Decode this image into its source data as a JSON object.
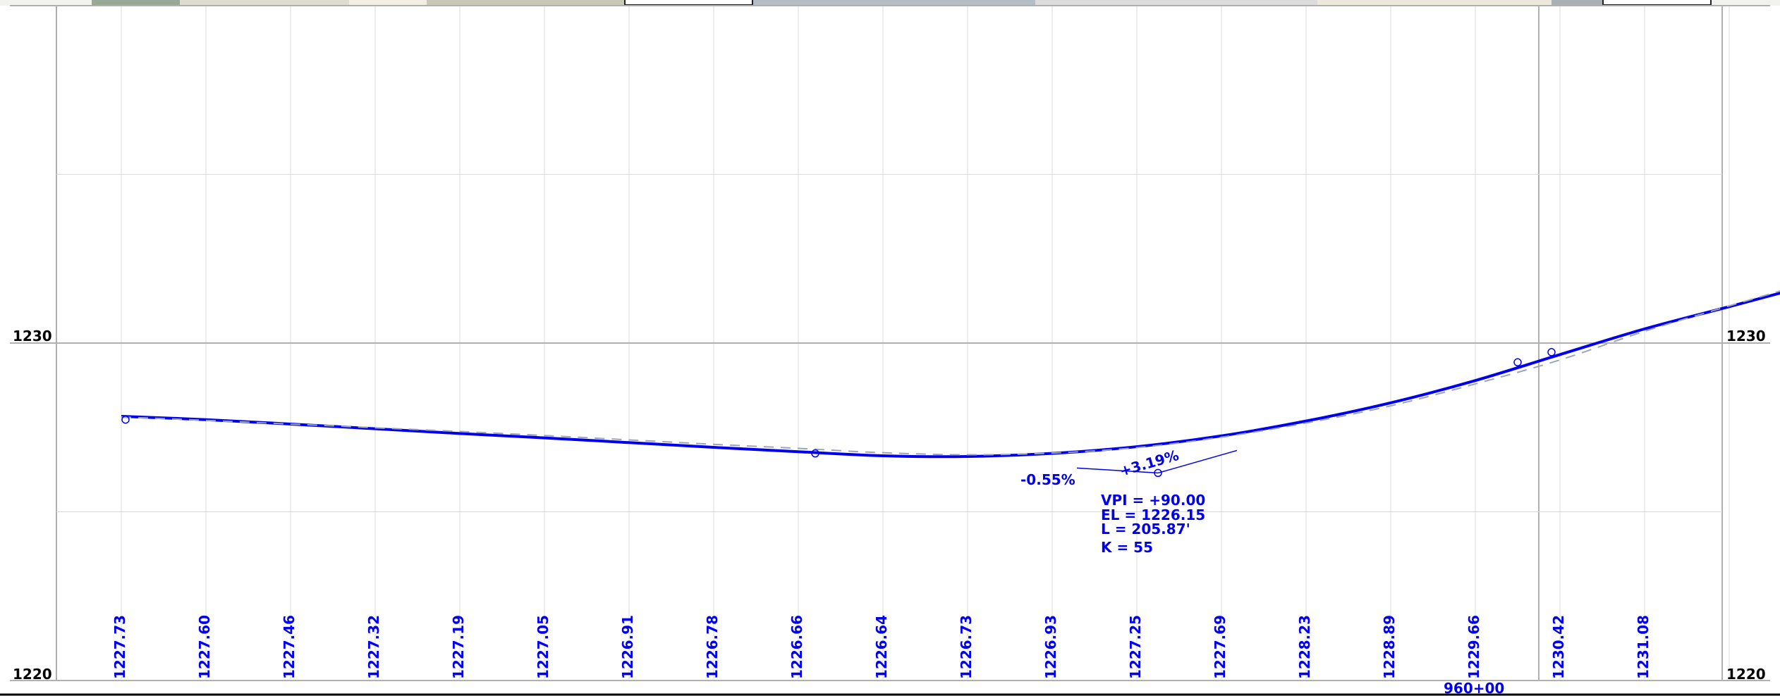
{
  "chart_data": {
    "type": "line",
    "title": "",
    "xlabel": "",
    "ylabel": "",
    "ylim": [
      1220,
      1240
    ],
    "elevation_labels": [
      "1230",
      "1220"
    ],
    "grid": true,
    "colors": {
      "profile": "#0000ee",
      "existing_ground": "#9aa5b8",
      "grid": "#d9d9d9",
      "major_grid": "#b0b0b0",
      "text": "#000000"
    },
    "station_label": "960+00",
    "station_elevations": {
      "labels": [
        "1227.73",
        "1227.60",
        "1227.46",
        "1227.32",
        "1227.19",
        "1227.05",
        "1226.91",
        "1226.78",
        "1226.66",
        "1226.64",
        "1226.73",
        "1226.93",
        "1227.25",
        "1227.69",
        "1228.23",
        "1228.89",
        "1229.66",
        "1230.42",
        "1231.08"
      ],
      "values": [
        1227.73,
        1227.6,
        1227.46,
        1227.32,
        1227.19,
        1227.05,
        1226.91,
        1226.78,
        1226.66,
        1226.64,
        1226.73,
        1226.93,
        1227.25,
        1227.69,
        1228.23,
        1228.89,
        1229.66,
        1230.42,
        1231.08
      ]
    },
    "series": [
      {
        "key": "proposed",
        "x": [
          0,
          1,
          2,
          3,
          4,
          5,
          6,
          7,
          8,
          9,
          10,
          11,
          12,
          13,
          14,
          15,
          16,
          17,
          18,
          19,
          19.75
        ],
        "y": [
          1227.83,
          1227.73,
          1227.6,
          1227.46,
          1227.32,
          1227.19,
          1227.05,
          1226.91,
          1226.78,
          1226.66,
          1226.64,
          1226.73,
          1226.93,
          1227.25,
          1227.69,
          1228.23,
          1228.89,
          1229.66,
          1230.42,
          1231.08,
          1231.58
        ]
      },
      {
        "key": "existing",
        "x": [
          0,
          1,
          2,
          3,
          4,
          5,
          6,
          7,
          8,
          9,
          10,
          11,
          12,
          13,
          14,
          15,
          16,
          17,
          18,
          19,
          19.75
        ],
        "y": [
          1227.81,
          1227.71,
          1227.6,
          1227.49,
          1227.38,
          1227.26,
          1227.13,
          1227.0,
          1226.88,
          1226.75,
          1226.69,
          1226.74,
          1226.9,
          1227.21,
          1227.63,
          1228.14,
          1228.79,
          1229.5,
          1230.35,
          1231.1,
          1231.65
        ]
      }
    ],
    "points": [
      {
        "x": 0.05,
        "y": 1227.73
      },
      {
        "x": 8.2,
        "y": 1226.73
      },
      {
        "x": 16.5,
        "y": 1229.43
      },
      {
        "x": 16.9,
        "y": 1229.73
      }
    ],
    "vpi": {
      "x": 12.25,
      "y": 1226.15,
      "grade_in": "-0.55%",
      "grade_out": "+3.19%",
      "lines": [
        "VPI = +90.00",
        "EL = 1226.15",
        "L = 205.87'",
        "K = 55"
      ]
    }
  },
  "thumbnails": {
    "colors": [
      "#f2f2ee",
      "#9aa896",
      "#dcdcd0",
      "#f2eee4",
      "#c8c8b8",
      "#e8e4d8",
      "#b4bcc4",
      "#dcdcdc",
      "#ece8dc",
      "#a8b0b4",
      "#f0f0f0"
    ]
  }
}
